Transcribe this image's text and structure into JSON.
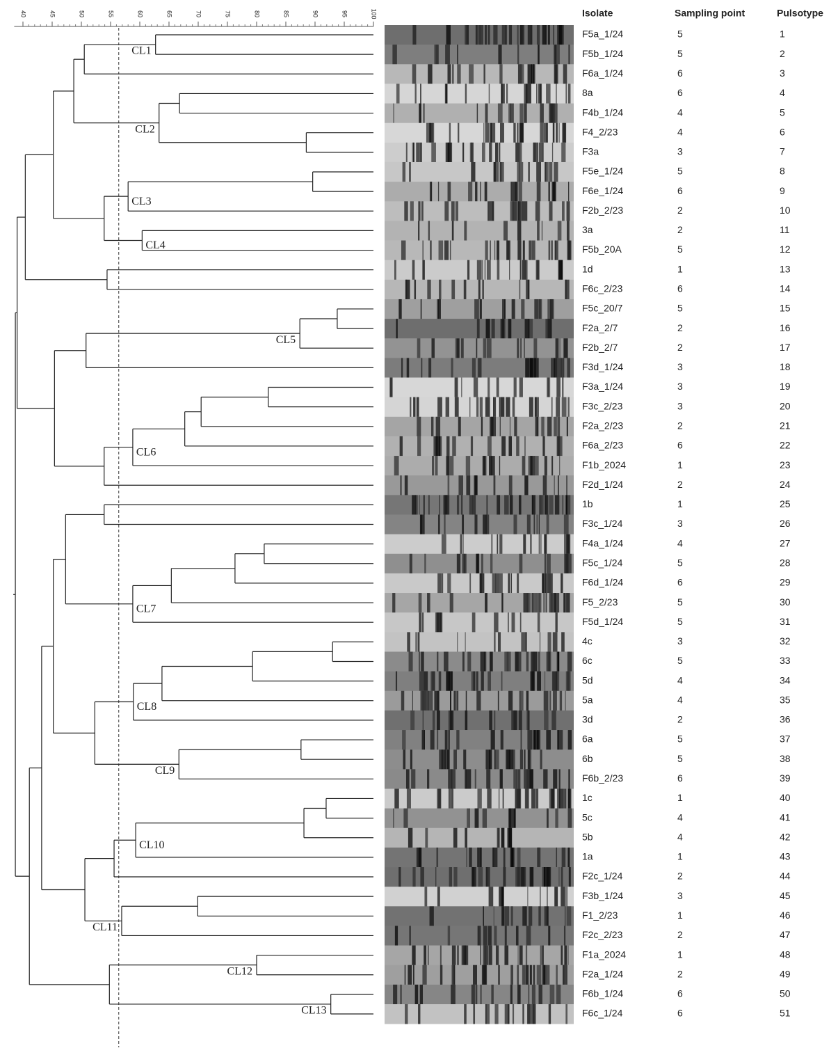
{
  "chart_data": {
    "type": "dendrogram",
    "xlim": [
      38.5,
      100
    ],
    "xticks": [
      40,
      45,
      50,
      55,
      60,
      65,
      70,
      75,
      80,
      85,
      90,
      95,
      100
    ],
    "xminorticks": [
      41,
      42,
      43,
      44,
      46,
      47,
      48,
      49,
      51,
      52,
      53,
      54,
      56,
      57,
      58,
      59,
      61,
      62,
      63,
      64,
      66,
      67,
      68,
      69,
      71,
      72,
      73,
      74,
      76,
      77,
      78,
      79,
      81,
      82,
      83,
      84,
      86,
      87,
      88,
      89,
      91,
      92,
      93,
      94,
      96,
      97,
      98,
      99
    ],
    "cutoff": 56.4,
    "columns": [
      "Isolate",
      "Sampling point",
      "Pulsotype"
    ],
    "rows": [
      [
        "F5a_1/24",
        5,
        1
      ],
      [
        "F5b_1/24",
        5,
        2
      ],
      [
        "F6a_1/24",
        6,
        3
      ],
      [
        "8a",
        6,
        4
      ],
      [
        "F4b_1/24",
        4,
        5
      ],
      [
        "F4_2/23",
        4,
        6
      ],
      [
        "F3a",
        3,
        7
      ],
      [
        "F5e_1/24",
        5,
        8
      ],
      [
        "F6e_1/24",
        6,
        9
      ],
      [
        "F2b_2/23",
        2,
        10
      ],
      [
        "3a",
        2,
        11
      ],
      [
        "F5b_20A",
        5,
        12
      ],
      [
        "1d",
        1,
        13
      ],
      [
        "F6c_2/23",
        6,
        14
      ],
      [
        "F5c_20/7",
        5,
        15
      ],
      [
        "F2a_2/7",
        2,
        16
      ],
      [
        "F2b_2/7",
        2,
        17
      ],
      [
        "F3d_1/24",
        3,
        18
      ],
      [
        "F3a_1/24",
        3,
        19
      ],
      [
        "F3c_2/23",
        3,
        20
      ],
      [
        "F2a_2/23",
        2,
        21
      ],
      [
        "F6a_2/23",
        6,
        22
      ],
      [
        "F1b_2024",
        1,
        23
      ],
      [
        "F2d_1/24",
        2,
        24
      ],
      [
        "1b",
        1,
        25
      ],
      [
        "F3c_1/24",
        3,
        26
      ],
      [
        "F4a_1/24",
        4,
        27
      ],
      [
        "F5c_1/24",
        5,
        28
      ],
      [
        "F6d_1/24",
        6,
        29
      ],
      [
        "F5_2/23",
        5,
        30
      ],
      [
        "F5d_1/24",
        5,
        31
      ],
      [
        "4c",
        3,
        32
      ],
      [
        "6c",
        5,
        33
      ],
      [
        "5d",
        4,
        34
      ],
      [
        "5a",
        4,
        35
      ],
      [
        "3d",
        2,
        36
      ],
      [
        "6a",
        5,
        37
      ],
      [
        "6b",
        5,
        38
      ],
      [
        "F6b_2/23",
        6,
        39
      ],
      [
        "1c",
        1,
        40
      ],
      [
        "5c",
        4,
        41
      ],
      [
        "5b",
        4,
        42
      ],
      [
        "1a",
        1,
        43
      ],
      [
        "F2c_1/24",
        2,
        44
      ],
      [
        "F3b_1/24",
        3,
        45
      ],
      [
        "F1_2/23",
        1,
        46
      ],
      [
        "F2c_2/23",
        2,
        47
      ],
      [
        "F1a_2024",
        1,
        48
      ],
      [
        "F2a_1/24",
        2,
        49
      ],
      [
        "F6b_1/24",
        6,
        50
      ],
      [
        "F6c_1/24",
        6,
        51
      ]
    ],
    "tree": {
      "similarity": 38.7,
      "children": [
        {
          "similarity": 39.0,
          "children": [
            {
              "similarity": 40.4,
              "children": [
                {
                  "similarity": 45.2,
                  "children": [
                    {
                      "similarity": 48.7,
                      "children": [
                        {
                          "similarity": 50.5,
                          "children": [
                            {
                              "similarity": 62.7,
                              "label": "CL1",
                              "children": [
                                0,
                                1
                              ]
                            },
                            2
                          ]
                        },
                        {
                          "similarity": 63.3,
                          "label": "CL2",
                          "children": [
                            {
                              "similarity": 66.8,
                              "children": [
                                3,
                                4
                              ]
                            },
                            {
                              "similarity": 88.5,
                              "children": [
                                5,
                                6
                              ]
                            }
                          ]
                        }
                      ]
                    },
                    {
                      "similarity": 53.9,
                      "children": [
                        {
                          "similarity": 58.0,
                          "label": "CL3",
                          "children": [
                            {
                              "similarity": 89.6,
                              "children": [
                                7,
                                8
                              ]
                            },
                            9
                          ]
                        },
                        {
                          "similarity": 60.4,
                          "label": "CL4",
                          "children": [
                            10,
                            11
                          ]
                        }
                      ]
                    }
                  ]
                },
                {
                  "similarity": 54.4,
                  "children": [
                    12,
                    13
                  ]
                }
              ]
            },
            {
              "similarity": 45.4,
              "children": [
                {
                  "similarity": 50.8,
                  "children": [
                    {
                      "similarity": 87.4,
                      "label": "CL5",
                      "children": [
                        {
                          "similarity": 93.8,
                          "children": [
                            14,
                            15
                          ]
                        },
                        16
                      ]
                    },
                    17
                  ]
                },
                {
                  "similarity": 53.9,
                  "children": [
                    {
                      "similarity": 58.8,
                      "label": "CL6",
                      "children": [
                        {
                          "similarity": 67.7,
                          "children": [
                            {
                              "similarity": 70.5,
                              "children": [
                                {
                                  "similarity": 82.0,
                                  "children": [
                                    18,
                                    19
                                  ]
                                },
                                20
                              ]
                            },
                            21
                          ]
                        },
                        22
                      ]
                    },
                    23
                  ]
                }
              ]
            }
          ]
        },
        {
          "similarity": 41.1,
          "children": [
            {
              "similarity": 43.2,
              "children": [
                {
                  "similarity": 45.2,
                  "children": [
                    {
                      "similarity": 47.3,
                      "children": [
                        {
                          "similarity": 53.9,
                          "children": [
                            24,
                            25
                          ]
                        },
                        {
                          "similarity": 58.8,
                          "label": "CL7",
                          "children": [
                            {
                              "similarity": 65.4,
                              "children": [
                                {
                                  "similarity": 76.3,
                                  "children": [
                                    {
                                      "similarity": 81.3,
                                      "children": [
                                        26,
                                        27
                                      ]
                                    },
                                    28
                                  ]
                                },
                                29
                              ]
                            },
                            30
                          ]
                        }
                      ]
                    },
                    {
                      "similarity": 52.3,
                      "children": [
                        {
                          "similarity": 58.9,
                          "label": "CL8",
                          "children": [
                            {
                              "similarity": 63.8,
                              "children": [
                                {
                                  "similarity": 79.3,
                                  "children": [
                                    {
                                      "similarity": 93.0,
                                      "children": [
                                        31,
                                        32
                                      ]
                                    },
                                    33
                                  ]
                                },
                                34
                              ]
                            },
                            35
                          ]
                        },
                        {
                          "similarity": 66.7,
                          "label": "CL9",
                          "children": [
                            {
                              "similarity": 87.6,
                              "children": [
                                36,
                                37
                              ]
                            },
                            38
                          ]
                        }
                      ]
                    }
                  ]
                },
                {
                  "similarity": 50.6,
                  "children": [
                    {
                      "similarity": 55.6,
                      "children": [
                        {
                          "similarity": 59.3,
                          "label": "CL10",
                          "children": [
                            {
                              "similarity": 88.1,
                              "children": [
                                {
                                  "similarity": 91.9,
                                  "children": [
                                    39,
                                    40
                                  ]
                                },
                                41
                              ]
                            },
                            42
                          ]
                        },
                        43
                      ]
                    },
                    {
                      "similarity": 56.9,
                      "label": "CL11",
                      "children": [
                        {
                          "similarity": 69.9,
                          "children": [
                            44,
                            45
                          ]
                        },
                        46
                      ]
                    }
                  ]
                }
              ]
            },
            {
              "similarity": 54.8,
              "children": [
                {
                  "similarity": 80.0,
                  "label": "CL12",
                  "children": [
                    47,
                    48
                  ]
                },
                {
                  "similarity": 92.7,
                  "label": "CL13",
                  "children": [
                    49,
                    50
                  ]
                }
              ]
            }
          ]
        }
      ]
    }
  }
}
